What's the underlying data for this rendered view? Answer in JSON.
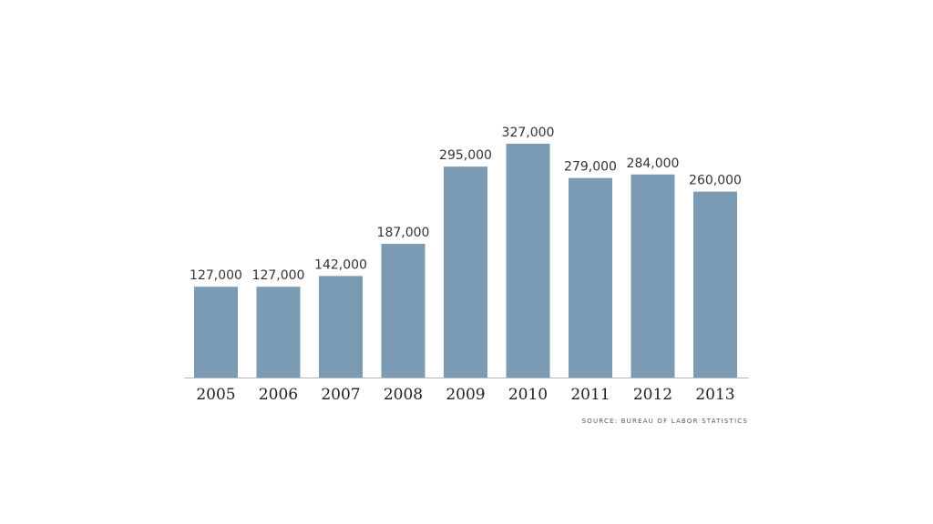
{
  "chart_data": {
    "type": "bar",
    "categories": [
      "2005",
      "2006",
      "2007",
      "2008",
      "2009",
      "2010",
      "2011",
      "2012",
      "2013"
    ],
    "values": [
      127000,
      127000,
      142000,
      187000,
      295000,
      327000,
      279000,
      284000,
      260000
    ],
    "data_labels": [
      "127,000",
      "127,000",
      "142,000",
      "187,000",
      "295,000",
      "327,000",
      "279,000",
      "284,000",
      "260,000"
    ],
    "ylim": [
      0,
      327000
    ],
    "grid": false,
    "bar_color": "#7b9ab3"
  },
  "source": "SOURCE: BUREAU OF LABOR STATISTICS"
}
